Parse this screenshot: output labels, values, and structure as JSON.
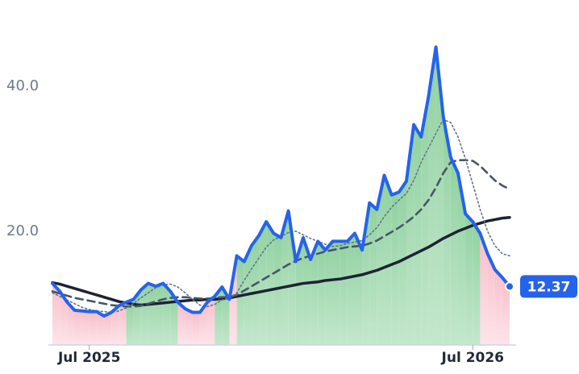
{
  "chart_data": {
    "type": "line",
    "categories": [
      null,
      null,
      null,
      null,
      null,
      "Jul 2025",
      null,
      null,
      null,
      null,
      null,
      null,
      null,
      null,
      null,
      null,
      null,
      null,
      null,
      null,
      null,
      null,
      null,
      null,
      null,
      null,
      null,
      null,
      null,
      null,
      null,
      null,
      null,
      null,
      null,
      null,
      null,
      null,
      null,
      null,
      null,
      null,
      null,
      null,
      null,
      null,
      null,
      null,
      null,
      null,
      null,
      null,
      null,
      null,
      null,
      null,
      null,
      "Jul 2026",
      null,
      null,
      null,
      null,
      null
    ],
    "series": [
      {
        "color": "#2563eb",
        "width": 4,
        "values": [
          12.8,
          11.7,
          10.2,
          9.1,
          9.0,
          8.9,
          8.9,
          8.3,
          8.8,
          9.7,
          10.2,
          10.6,
          11.9,
          12.8,
          12.4,
          12.8,
          11.7,
          10.2,
          9.3,
          8.8,
          8.8,
          10.2,
          11.0,
          12.3,
          10.6,
          16.6,
          15.8,
          18.0,
          19.4,
          21.3,
          19.7,
          19.1,
          22.8,
          15.8,
          19.1,
          16.1,
          18.6,
          17.4,
          18.6,
          18.6,
          18.6,
          19.7,
          17.4,
          23.9,
          23.0,
          27.7,
          25.0,
          25.4,
          26.9,
          34.7,
          33.0,
          38.6,
          45.4,
          35.8,
          30.2,
          28.0,
          22.4,
          21.3,
          19.7,
          16.9,
          14.7,
          13.6,
          12.37
        ]
      },
      {
        "color": "#64748b",
        "width": 1.6,
        "dash": "2 3",
        "values": [
          11.5,
          11.0,
          10.5,
          10.0,
          9.5,
          9.2,
          9.0,
          8.9,
          8.8,
          9.0,
          9.4,
          10.0,
          10.8,
          11.5,
          12.2,
          12.6,
          12.7,
          12.3,
          11.5,
          10.6,
          9.8,
          9.6,
          9.9,
          10.5,
          10.8,
          11.5,
          13.2,
          14.8,
          16.3,
          17.8,
          18.8,
          19.3,
          19.8,
          20.0,
          19.5,
          19.0,
          18.6,
          18.2,
          17.9,
          18.0,
          18.3,
          18.5,
          18.7,
          19.5,
          20.5,
          22.0,
          23.3,
          24.3,
          25.2,
          27.0,
          29.5,
          31.5,
          33.5,
          35.4,
          35.0,
          33.0,
          30.0,
          26.5,
          23.0,
          20.0,
          18.0,
          16.9,
          16.6
        ]
      },
      {
        "color": "#475569",
        "width": 2.6,
        "dash": "9 6",
        "values": [
          11.7,
          11.4,
          11.1,
          10.8,
          10.6,
          10.4,
          10.2,
          10.0,
          9.8,
          9.7,
          9.6,
          9.6,
          9.7,
          10.0,
          10.3,
          10.6,
          10.8,
          10.9,
          10.9,
          10.8,
          10.7,
          10.7,
          10.8,
          10.9,
          10.9,
          11.2,
          11.8,
          12.4,
          13.0,
          13.6,
          14.2,
          14.8,
          15.4,
          15.9,
          16.3,
          16.6,
          16.9,
          17.2,
          17.4,
          17.6,
          17.8,
          17.9,
          18.0,
          18.3,
          18.7,
          19.3,
          19.9,
          20.5,
          21.2,
          22.0,
          23.0,
          24.3,
          26.0,
          28.0,
          29.5,
          29.8,
          29.8,
          29.7,
          29.0,
          28.0,
          27.0,
          26.3,
          25.8
        ]
      },
      {
        "color": "#1e2235",
        "width": 3.5,
        "values": [
          12.9,
          12.7,
          12.4,
          12.1,
          11.8,
          11.5,
          11.2,
          10.9,
          10.6,
          10.3,
          10.1,
          9.9,
          9.8,
          9.9,
          10.0,
          10.1,
          10.2,
          10.3,
          10.4,
          10.5,
          10.5,
          10.6,
          10.6,
          10.7,
          10.8,
          11.0,
          11.2,
          11.4,
          11.6,
          11.8,
          12.0,
          12.2,
          12.4,
          12.6,
          12.8,
          12.9,
          13.0,
          13.2,
          13.3,
          13.4,
          13.6,
          13.8,
          14.0,
          14.3,
          14.6,
          15.0,
          15.4,
          15.8,
          16.3,
          16.8,
          17.3,
          17.8,
          18.4,
          19.0,
          19.5,
          20.0,
          20.4,
          20.8,
          21.1,
          21.4,
          21.6,
          21.8,
          21.9
        ]
      }
    ],
    "up_color": "#8fd3a0",
    "down_color": "#f9c6d0",
    "ylim": [
      4.3,
      48
    ],
    "yticks": [
      {
        "value": 20,
        "label": "20.0"
      },
      {
        "value": 40,
        "label": "40.0"
      }
    ],
    "grid": false
  }
}
